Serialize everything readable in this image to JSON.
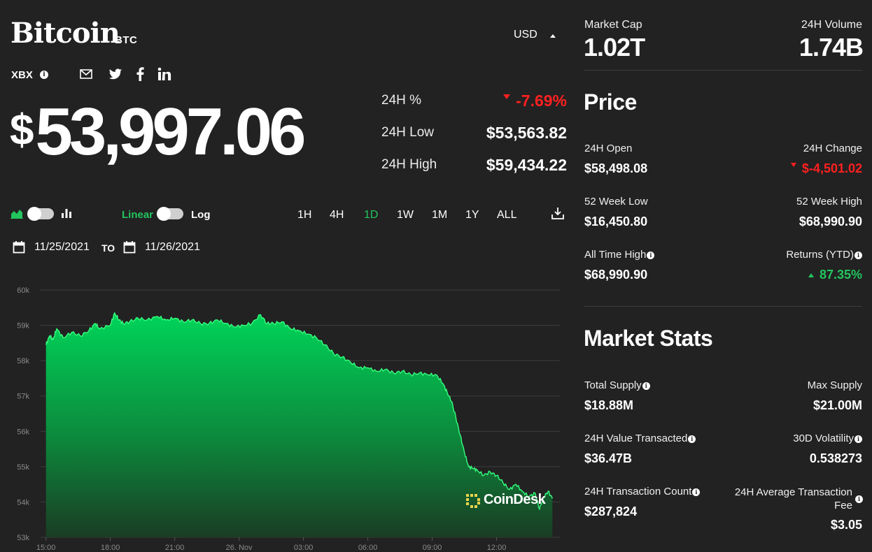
{
  "header": {
    "name": "Bitcoin",
    "symbol": "BTC",
    "currency": "USD",
    "exchange": "XBX",
    "share_icons": [
      "email-icon",
      "twitter-icon",
      "facebook-icon",
      "linkedin-icon"
    ]
  },
  "price": {
    "dollar": "$",
    "value": "53,997.06"
  },
  "summary": {
    "pct_label": "24H %",
    "pct_value": "-7.69%",
    "low_label": "24H Low",
    "low_value": "$53,563.82",
    "high_label": "24H High",
    "high_value": "$59,434.22"
  },
  "controls": {
    "linear_label": "Linear",
    "log_label": "Log",
    "ranges": [
      "1H",
      "4H",
      "1D",
      "1W",
      "1M",
      "1Y",
      "ALL"
    ],
    "active_range": "1D",
    "date_from": "11/25/2021",
    "to_label": "TO",
    "date_to": "11/26/2021"
  },
  "colors": {
    "background": "#222222",
    "accent_green": "#22c55e",
    "negative_red": "#ff2020",
    "chart_fill_top": "#00c853"
  },
  "chart_data": {
    "type": "area",
    "ylim": [
      53000,
      60000
    ],
    "y_ticks": [
      "60k",
      "59k",
      "58k",
      "57k",
      "56k",
      "55k",
      "54k",
      "53k"
    ],
    "x_ticks": [
      "15:00",
      "18:00",
      "21:00",
      "26. Nov",
      "03:00",
      "06:00",
      "09:00",
      "12:00"
    ],
    "x_hours": [
      0,
      3,
      6,
      9,
      12,
      15,
      18,
      21
    ],
    "xlim": [
      -0.25,
      23.95
    ],
    "series": [
      {
        "x": [
          0,
          0.17,
          0.33,
          0.5,
          0.8,
          1.2,
          1.6,
          2.0,
          2.3,
          2.5,
          3.0,
          3.2,
          3.4,
          3.6,
          3.9,
          4.3,
          4.7,
          5.2,
          5.6,
          6.0,
          6.4,
          6.8,
          7.2,
          7.6,
          8.0,
          8.4,
          8.8,
          9.2,
          9.6,
          10.0,
          10.3,
          10.6,
          11.0,
          11.4,
          11.8,
          12.2,
          12.6,
          13.0,
          13.4,
          13.8,
          14.2,
          14.6,
          15.0,
          15.4,
          15.8,
          16.2,
          16.6,
          17.0,
          17.4,
          17.8,
          18.2,
          18.5,
          18.7,
          18.9,
          19.1,
          19.3,
          19.5,
          19.7,
          19.9,
          20.1,
          20.4,
          20.7,
          21.0,
          21.3,
          21.6,
          21.9,
          22.2,
          22.5,
          22.8,
          23.0,
          23.2,
          23.4,
          23.6
        ],
        "y": [
          58450,
          58700,
          58600,
          58900,
          58650,
          58800,
          58700,
          58850,
          59050,
          58900,
          59000,
          59350,
          59150,
          59050,
          59100,
          59200,
          59150,
          59250,
          59150,
          59200,
          59100,
          59150,
          59050,
          59050,
          59150,
          59050,
          58950,
          59000,
          59050,
          59300,
          59050,
          59050,
          59100,
          58900,
          58850,
          58750,
          58650,
          58450,
          58200,
          58100,
          57950,
          57800,
          57800,
          57700,
          57750,
          57650,
          57700,
          57600,
          57650,
          57600,
          57600,
          57350,
          57100,
          56850,
          56400,
          55900,
          55400,
          55000,
          54950,
          54900,
          54750,
          54850,
          54750,
          54550,
          54350,
          54500,
          54300,
          54150,
          54250,
          53800,
          54150,
          54300,
          54100
        ]
      }
    ]
  },
  "watermark": "CoinDesk",
  "market": {
    "cap_label": "Market Cap",
    "cap_value": "1.02T",
    "volume_label": "24H Volume",
    "volume_value": "1.74B"
  },
  "price_section": {
    "title": "Price",
    "open_label": "24H Open",
    "open_value": "$58,498.08",
    "change_label": "24H Change",
    "change_value": "$-4,501.02",
    "wk52_low_label": "52 Week Low",
    "wk52_low_value": "$16,450.80",
    "wk52_high_label": "52 Week High",
    "wk52_high_value": "$68,990.90",
    "ath_label": "All Time High",
    "ath_value": "$68,990.90",
    "returns_label": "Returns (YTD)",
    "returns_value": "87.35%"
  },
  "stats_section": {
    "title": "Market Stats",
    "supply_label": "Total Supply",
    "supply_value": "$18.88M",
    "max_label": "Max Supply",
    "max_value": "$21.00M",
    "tx_value_label": "24H Value Transacted",
    "tx_value_value": "$36.47B",
    "vol30_label": "30D Volatility",
    "vol30_value": "0.538273",
    "tx_count_label": "24H Transaction Count",
    "tx_count_value": "$287,824",
    "fee_label_1": "24H Average Transaction",
    "fee_label_2": "Fee",
    "fee_value": "$3.05"
  }
}
